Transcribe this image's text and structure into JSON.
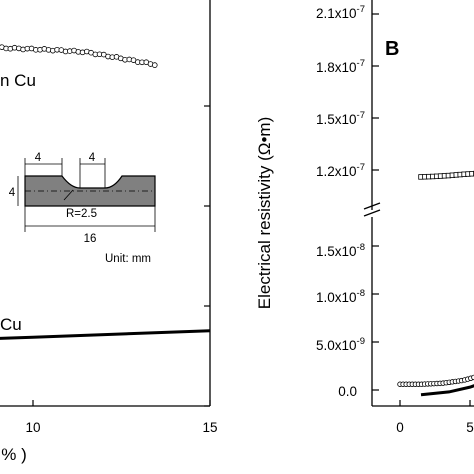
{
  "chart_data": [
    {
      "type": "scatter",
      "panel": "A",
      "xticks": [
        "10",
        "15"
      ],
      "x_axis_label_fragment": "%",
      "labels": [
        "n Cu",
        "Cu"
      ],
      "xlim": [
        0,
        15
      ],
      "series": [
        {
          "marker": "open-circle",
          "points": [
            [
              0.0,
              0.86
            ],
            [
              1.5,
              0.86
            ],
            [
              3.0,
              0.855
            ],
            [
              4.5,
              0.85
            ],
            [
              6.0,
              0.845
            ],
            [
              7.5,
              0.84
            ],
            [
              9.0,
              0.835
            ],
            [
              10.5,
              0.83
            ],
            [
              11.5,
              0.825
            ],
            [
              12.5,
              0.81
            ],
            [
              13.5,
              0.795
            ]
          ]
        },
        {
          "marker": "line",
          "points": [
            [
              0.0,
              0.13
            ],
            [
              5.0,
              0.145
            ],
            [
              10.0,
              0.16
            ],
            [
              15.0,
              0.175
            ]
          ]
        }
      ],
      "inset": {
        "dims": [
          "4",
          "4",
          "4",
          "R=2.5",
          "16"
        ],
        "unit": "Unit: mm"
      }
    },
    {
      "type": "scatter",
      "panel": "B",
      "ylabel": "Electrical resistivity (Ω•m)",
      "yticks_upper": [
        "2.1x10-7",
        "1.8x10-7",
        "1.5x10-7",
        "1.2x10-7"
      ],
      "yticks_lower": [
        "1.5x10-8",
        "1.0x10-8",
        "5.0x10-9",
        "0.0"
      ],
      "xticks": [
        "0",
        "5"
      ],
      "series": [
        {
          "marker": "open-square",
          "points": [
            [
              1.5,
              1.16e-07
            ],
            [
              2.5,
              1.163e-07
            ],
            [
              3.5,
              1.168e-07
            ],
            [
              4.5,
              1.175e-07
            ],
            [
              5.5,
              1.18e-07
            ],
            [
              6.0,
              1.185e-07
            ]
          ]
        },
        {
          "marker": "open-circle",
          "points": [
            [
              0.0,
              6e-10
            ],
            [
              1.5,
              6e-10
            ],
            [
              3.0,
              7e-10
            ],
            [
              4.5,
              1e-09
            ],
            [
              5.5,
              1.4e-09
            ],
            [
              6.0,
              1.8e-09
            ]
          ]
        },
        {
          "marker": "line",
          "points": [
            [
              1.5,
              -5e-10
            ],
            [
              3.5,
              -2e-10
            ],
            [
              5.0,
              3e-10
            ],
            [
              6.0,
              8e-10
            ]
          ]
        }
      ]
    }
  ]
}
